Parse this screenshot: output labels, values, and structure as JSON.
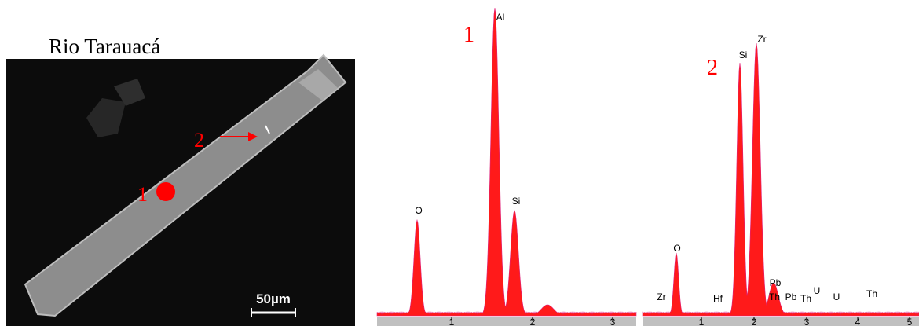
{
  "image": {
    "title": "Rio Tarauacá",
    "markers": [
      "1",
      "2"
    ],
    "scale_bar": "50µm"
  },
  "spectra": [
    {
      "label": "1",
      "peak_labels": [
        "O",
        "Al",
        "Si"
      ],
      "axis_labels": [
        "1",
        "2",
        "3"
      ]
    },
    {
      "label": "2",
      "peak_labels": [
        "Zr",
        "Hf",
        "O",
        "Si",
        "Zr",
        "Pb",
        "Th",
        "Pb",
        "Th",
        "U",
        "U",
        "Th"
      ],
      "axis_labels": [
        "1",
        "2",
        "3",
        "4",
        "5"
      ]
    }
  ]
}
